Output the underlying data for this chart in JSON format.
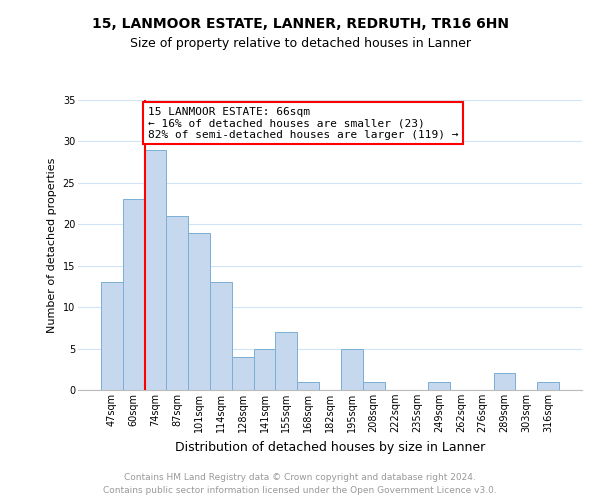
{
  "title1": "15, LANMOOR ESTATE, LANNER, REDRUTH, TR16 6HN",
  "title2": "Size of property relative to detached houses in Lanner",
  "xlabel": "Distribution of detached houses by size in Lanner",
  "ylabel": "Number of detached properties",
  "bar_labels": [
    "47sqm",
    "60sqm",
    "74sqm",
    "87sqm",
    "101sqm",
    "114sqm",
    "128sqm",
    "141sqm",
    "155sqm",
    "168sqm",
    "182sqm",
    "195sqm",
    "208sqm",
    "222sqm",
    "235sqm",
    "249sqm",
    "262sqm",
    "276sqm",
    "289sqm",
    "303sqm",
    "316sqm"
  ],
  "bar_values": [
    13,
    23,
    29,
    21,
    19,
    13,
    4,
    5,
    7,
    1,
    0,
    5,
    1,
    0,
    0,
    1,
    0,
    0,
    2,
    0,
    1
  ],
  "bar_color": "#c5d8ed",
  "bar_edge_color": "#7bafd4",
  "grid_color": "#d0e4f5",
  "annotation_text": "15 LANMOOR ESTATE: 66sqm\n← 16% of detached houses are smaller (23)\n82% of semi-detached houses are larger (119) →",
  "annotation_box_color": "white",
  "annotation_box_edge_color": "red",
  "vline_color": "red",
  "vline_x": 1.5,
  "ylim": [
    0,
    35
  ],
  "yticks": [
    0,
    5,
    10,
    15,
    20,
    25,
    30,
    35
  ],
  "footer_line1": "Contains HM Land Registry data © Crown copyright and database right 2024.",
  "footer_line2": "Contains public sector information licensed under the Open Government Licence v3.0.",
  "footer_color": "#999999",
  "background_color": "#ffffff",
  "title1_fontsize": 10,
  "title2_fontsize": 9,
  "ylabel_fontsize": 8,
  "xlabel_fontsize": 9,
  "tick_fontsize": 7,
  "annotation_fontsize": 8,
  "footer_fontsize": 6.5
}
